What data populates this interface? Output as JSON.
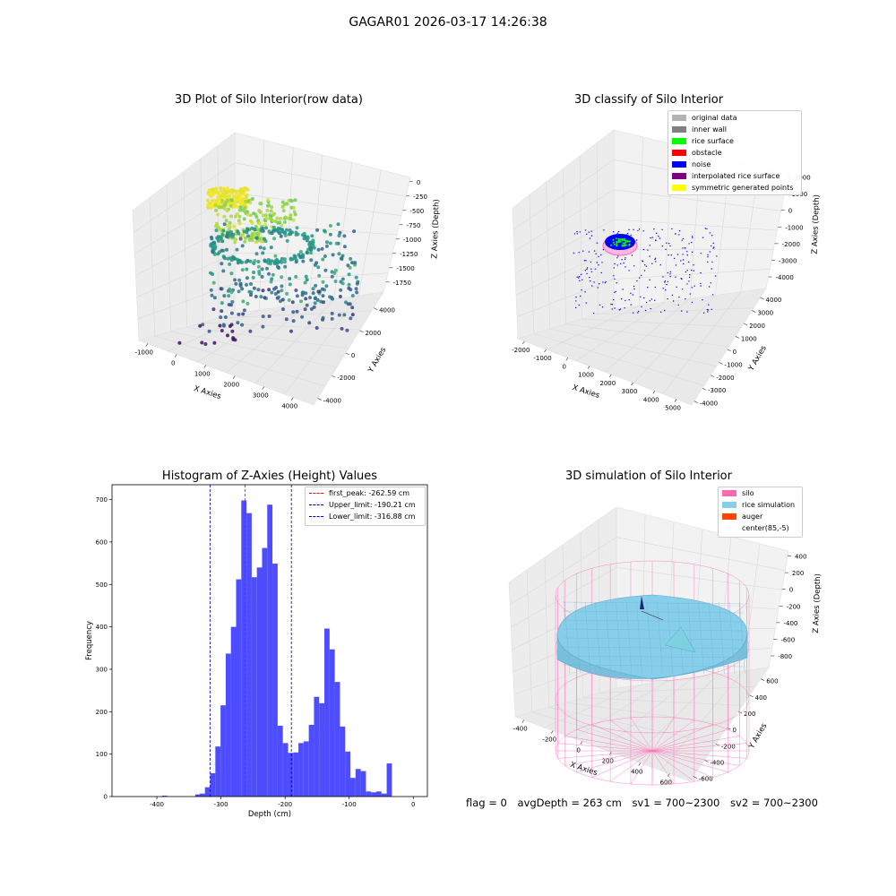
{
  "suptitle": "GAGAR01 2026-03-17 14:26:38",
  "panels": {
    "raw": {
      "title": "3D Plot of Silo Interior(row data)",
      "xlabel": "X Axies",
      "ylabel": "Y Axies",
      "zlabel": "Z Axies (Depth)",
      "xticks": [
        "-1000",
        "0",
        "1000",
        "2000",
        "3000",
        "4000"
      ],
      "yticks": [
        "-4000",
        "-2000",
        "0",
        "2000",
        "4000"
      ],
      "zticks": [
        "0",
        "-250",
        "-500",
        "-750",
        "-1000",
        "-1250",
        "-1500",
        "-1750"
      ]
    },
    "classify": {
      "title": "3D classify of Silo Interior",
      "xlabel": "X Axies",
      "ylabel": "Y Axies",
      "zlabel": "Z Axies (Depth)",
      "xticks": [
        "-2000",
        "-1000",
        "0",
        "1000",
        "2000",
        "3000",
        "4000",
        "5000"
      ],
      "yticks": [
        "-4000",
        "-3000",
        "-2000",
        "-1000",
        "0",
        "1000",
        "2000",
        "3000",
        "4000"
      ],
      "zticks": [
        "2000",
        "1000",
        "0",
        "-1000",
        "-2000",
        "-3000",
        "-4000"
      ],
      "legend": [
        {
          "label": "original data",
          "color": "#b3b3b3"
        },
        {
          "label": "inner wall",
          "color": "#808080"
        },
        {
          "label": "rice surface",
          "color": "#00ff00"
        },
        {
          "label": "obstacle",
          "color": "#ff0000"
        },
        {
          "label": "noise",
          "color": "#0000ff"
        },
        {
          "label": "interpolated rice surface",
          "color": "#800080"
        },
        {
          "label": "symmetric generated points",
          "color": "#ffff00"
        }
      ]
    },
    "simulation": {
      "title": "3D simulation of Silo Interior",
      "xlabel": "X Axies",
      "ylabel": "Y Axies",
      "zlabel": "Z Axies (Depth)",
      "xticks": [
        "-400",
        "-200",
        "0",
        "200",
        "400",
        "600"
      ],
      "yticks": [
        "-600",
        "-400",
        "-200",
        "0",
        "200",
        "400",
        "600"
      ],
      "zticks": [
        "400",
        "200",
        "0",
        "-200",
        "-400",
        "-600",
        "-800"
      ],
      "legend": [
        {
          "label": "silo",
          "color": "#ff69b4"
        },
        {
          "label": "rice simulation",
          "color": "#87ceeb"
        },
        {
          "label": "auger",
          "color": "#ff4500"
        },
        {
          "label": "center(85,-5)",
          "color": "#ffffff"
        }
      ]
    }
  },
  "footer": {
    "flag": "flag = 0",
    "avg_depth": "avgDepth = 263 cm",
    "sv1": "sv1 = 700~2300",
    "sv2": "sv2 = 700~2300"
  },
  "chart_data": [
    {
      "type": "scatter",
      "title": "3D Plot of Silo Interior(row data)",
      "xlabel": "X Axies",
      "ylabel": "Y Axies",
      "zlabel": "Z Axies (Depth)",
      "xlim": [
        -1000,
        4500
      ],
      "ylim": [
        -4500,
        4500
      ],
      "zlim": [
        -1900,
        100
      ],
      "grid": true
    },
    {
      "type": "scatter",
      "title": "3D classify of Silo Interior",
      "xlabel": "X Axies",
      "ylabel": "Y Axies",
      "zlabel": "Z Axies (Depth)",
      "xlim": [
        -2000,
        5000
      ],
      "ylim": [
        -4000,
        4000
      ],
      "zlim": [
        -4000,
        2000
      ],
      "legend_position": "top-right",
      "series": [
        {
          "name": "original data",
          "color": "#b3b3b3"
        },
        {
          "name": "inner wall",
          "color": "#808080"
        },
        {
          "name": "rice surface",
          "color": "#00ff00"
        },
        {
          "name": "obstacle",
          "color": "#ff0000"
        },
        {
          "name": "noise",
          "color": "#0000ff"
        },
        {
          "name": "interpolated rice surface",
          "color": "#800080"
        },
        {
          "name": "symmetric generated points",
          "color": "#ffff00"
        }
      ]
    },
    {
      "type": "bar",
      "title": "Histogram of Z-Axies (Height) Values",
      "xlabel": "Depth (cm)",
      "ylabel": "Frequency",
      "xlim": [
        -470,
        22
      ],
      "ylim": [
        0,
        735
      ],
      "xticks": [
        -400,
        -300,
        -200,
        -100,
        0
      ],
      "yticks": [
        0,
        100,
        200,
        300,
        400,
        500,
        600,
        700
      ],
      "bin_start": -325,
      "bin_width": 8.1,
      "values": [
        22,
        55,
        118,
        215,
        337,
        400,
        512,
        698,
        668,
        517,
        540,
        586,
        688,
        549,
        167,
        126,
        103,
        104,
        126,
        130,
        169,
        235,
        220,
        396,
        347,
        270,
        165,
        106,
        44,
        65,
        60,
        12,
        10,
        12,
        7,
        78
      ],
      "outliers": [
        {
          "x": -392,
          "value": 2
        },
        {
          "x": -340,
          "value": 5
        },
        {
          "x": -333,
          "value": 7
        }
      ],
      "vlines": [
        {
          "label": "first_peak: -262.59 cm",
          "x": -262.59,
          "color": "#ff0000"
        },
        {
          "label": "Upper_limit: -190.21 cm",
          "x": -190.21,
          "color": "#00008b"
        },
        {
          "label": "Lower_limit: -316.88 cm",
          "x": -316.88,
          "color": "#0000cd"
        }
      ],
      "bar_color": "#4d4dff",
      "legend_position": "top-right"
    },
    {
      "type": "surface",
      "title": "3D simulation of Silo Interior",
      "xlabel": "X Axies",
      "ylabel": "Y Axies",
      "zlabel": "Z Axies (Depth)",
      "xlim": [
        -500,
        700
      ],
      "ylim": [
        -700,
        700
      ],
      "zlim": [
        -900,
        450
      ],
      "series": [
        {
          "name": "silo",
          "color": "#ff69b4"
        },
        {
          "name": "rice simulation",
          "color": "#87ceeb"
        },
        {
          "name": "auger",
          "color": "#ff4500"
        },
        {
          "name": "center(85,-5)",
          "color": "#ffffff"
        }
      ],
      "legend_position": "top-right"
    }
  ]
}
